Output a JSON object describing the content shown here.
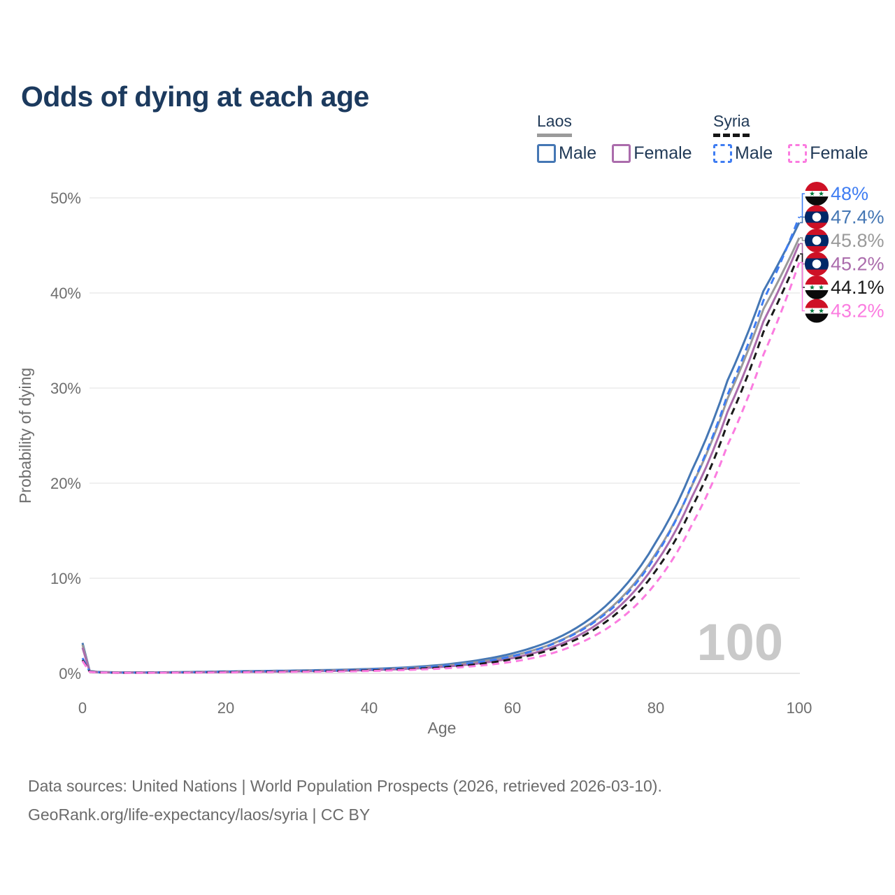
{
  "title": "Odds of dying at each age",
  "legend": {
    "groups": [
      {
        "country": "Laos",
        "style": "solid",
        "swatch_color": "#9a9a9a",
        "items": [
          {
            "label": "Male",
            "color": "#4577b4"
          },
          {
            "label": "Female",
            "color": "#ab6cac"
          }
        ]
      },
      {
        "country": "Syria",
        "style": "dashed",
        "swatch_color": "#161616",
        "items": [
          {
            "label": "Male",
            "color": "#3f7df2"
          },
          {
            "label": "Female",
            "color": "#fb7ce0"
          }
        ]
      }
    ]
  },
  "chart_data": {
    "type": "line",
    "title": "Odds of dying at each age",
    "xlabel": "Age",
    "ylabel": "Probability of dying",
    "watermark": "100",
    "grid": "horizontal",
    "xlim": [
      0,
      100
    ],
    "ylim_pct": [
      0,
      50
    ],
    "x_ticks": [
      0,
      20,
      40,
      60,
      80,
      100
    ],
    "y_tick_values": [
      0,
      10,
      20,
      30,
      40,
      50
    ],
    "y_ticks": [
      "0%",
      "10%",
      "20%",
      "30%",
      "40%",
      "50%"
    ],
    "ages": [
      0,
      1,
      2,
      5,
      10,
      15,
      20,
      25,
      30,
      35,
      40,
      45,
      50,
      55,
      60,
      65,
      70,
      75,
      80,
      85,
      90,
      95,
      100
    ],
    "series": [
      {
        "id": "laos-male",
        "name": "Laos Male",
        "country": "Laos",
        "flag": "laos",
        "color": "#4577b4",
        "dash": "solid",
        "end_label": "47.4%",
        "values": [
          3.2,
          0.25,
          0.17,
          0.1,
          0.1,
          0.15,
          0.2,
          0.25,
          0.3,
          0.36,
          0.46,
          0.62,
          0.88,
          1.35,
          2.1,
          3.3,
          5.3,
          8.6,
          13.8,
          21.3,
          30.8,
          40.2,
          47.4
        ]
      },
      {
        "id": "laos-both",
        "name": "Laos",
        "country": "Laos",
        "flag": "laos",
        "color": "#9a9a9a",
        "dash": "solid",
        "end_label": "45.8%",
        "values": [
          3.0,
          0.22,
          0.15,
          0.09,
          0.09,
          0.13,
          0.17,
          0.21,
          0.26,
          0.31,
          0.4,
          0.54,
          0.78,
          1.18,
          1.85,
          2.95,
          4.8,
          7.8,
          12.6,
          19.7,
          28.9,
          38.3,
          45.8
        ]
      },
      {
        "id": "laos-female",
        "name": "Laos Female",
        "country": "Laos",
        "flag": "laos",
        "color": "#ab6cac",
        "dash": "solid",
        "end_label": "45.2%",
        "values": [
          2.7,
          0.2,
          0.13,
          0.08,
          0.08,
          0.1,
          0.14,
          0.17,
          0.21,
          0.26,
          0.34,
          0.46,
          0.67,
          1.02,
          1.6,
          2.6,
          4.3,
          7.1,
          11.6,
          18.5,
          27.5,
          37.0,
          45.2
        ]
      },
      {
        "id": "syria-male",
        "name": "Syria Male",
        "country": "Syria",
        "flag": "syria",
        "color": "#3f7df2",
        "dash": "dashed",
        "end_label": "48%",
        "values": [
          1.6,
          0.18,
          0.12,
          0.07,
          0.08,
          0.12,
          0.17,
          0.21,
          0.25,
          0.3,
          0.39,
          0.52,
          0.76,
          1.15,
          1.8,
          2.9,
          4.7,
          7.6,
          12.4,
          19.8,
          29.3,
          39.2,
          48.0
        ]
      },
      {
        "id": "syria-both",
        "name": "Syria",
        "country": "Syria",
        "flag": "syria",
        "color": "#1a1a1a",
        "dash": "dashed",
        "end_label": "44.1%",
        "values": [
          1.4,
          0.16,
          0.1,
          0.06,
          0.07,
          0.1,
          0.13,
          0.16,
          0.2,
          0.24,
          0.31,
          0.43,
          0.62,
          0.95,
          1.5,
          2.4,
          4.0,
          6.6,
          10.8,
          17.4,
          26.3,
          35.9,
          44.1
        ]
      },
      {
        "id": "syria-female",
        "name": "Syria Female",
        "country": "Syria",
        "flag": "syria",
        "color": "#fb7ce0",
        "dash": "dashed",
        "end_label": "43.2%",
        "values": [
          1.3,
          0.15,
          0.09,
          0.06,
          0.06,
          0.08,
          0.1,
          0.13,
          0.16,
          0.19,
          0.25,
          0.35,
          0.5,
          0.78,
          1.22,
          2.0,
          3.4,
          5.7,
          9.5,
          15.6,
          24.0,
          33.5,
          43.2
        ]
      }
    ]
  },
  "footer": {
    "line1": "Data sources: United Nations | World Population Prospects (2026, retrieved 2026-03-10).",
    "line2": "GeoRank.org/life-expectancy/laos/syria | CC BY"
  }
}
